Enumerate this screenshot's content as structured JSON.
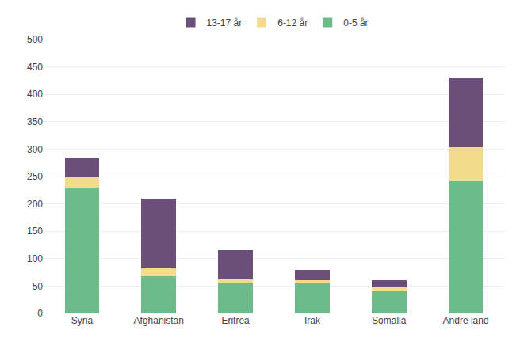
{
  "chart_data": {
    "type": "bar",
    "stacked": true,
    "categories": [
      "Syria",
      "Afghanistan",
      "Eritrea",
      "Irak",
      "Somalia",
      "Andre land"
    ],
    "series": [
      {
        "name": "0-5 år",
        "color": "#6dbb8a",
        "values": [
          230,
          68,
          57,
          55,
          40,
          242
        ]
      },
      {
        "name": "6-12 år",
        "color": "#f2dc8c",
        "values": [
          18,
          15,
          5,
          5,
          8,
          62
        ]
      },
      {
        "name": "13-17 år",
        "color": "#6b4f7a",
        "values": [
          37,
          127,
          53,
          20,
          12,
          127
        ]
      }
    ],
    "ylim": [
      0,
      500
    ],
    "yticks": [
      0,
      50,
      100,
      150,
      200,
      250,
      300,
      350,
      400,
      450,
      500
    ],
    "grid": true,
    "legend": "top"
  }
}
